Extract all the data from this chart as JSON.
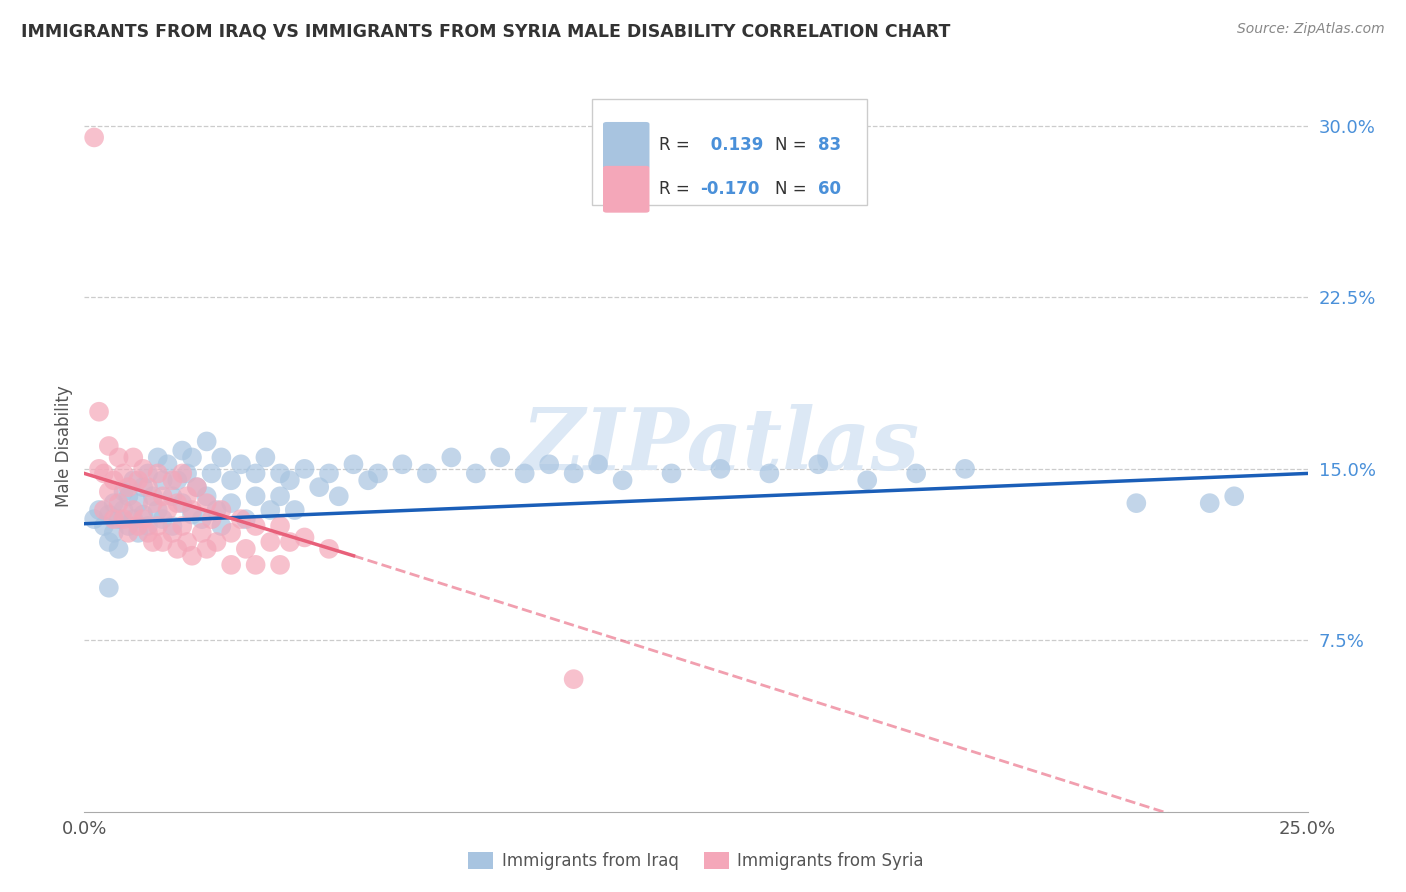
{
  "title": "IMMIGRANTS FROM IRAQ VS IMMIGRANTS FROM SYRIA MALE DISABILITY CORRELATION CHART",
  "source": "Source: ZipAtlas.com",
  "ylabel": "Male Disability",
  "xlim": [
    0.0,
    0.25
  ],
  "ylim": [
    0.0,
    0.32
  ],
  "yticks": [
    0.075,
    0.15,
    0.225,
    0.3
  ],
  "ytick_labels": [
    "7.5%",
    "15.0%",
    "22.5%",
    "30.0%"
  ],
  "xticks": [
    0.0,
    0.05,
    0.1,
    0.15,
    0.2,
    0.25
  ],
  "xtick_labels": [
    "0.0%",
    "",
    "",
    "",
    "",
    "25.0%"
  ],
  "iraq_R": 0.139,
  "iraq_N": 83,
  "syria_R": -0.17,
  "syria_N": 60,
  "iraq_color": "#a8c4e0",
  "syria_color": "#f4a7b9",
  "iraq_line_color": "#1a5eb8",
  "syria_line_color": "#e8607a",
  "background_color": "#ffffff",
  "watermark": "ZIPatlas",
  "watermark_color": "#dce8f5",
  "legend_color": "#4a90d9",
  "iraq_scatter": [
    [
      0.002,
      0.128
    ],
    [
      0.003,
      0.132
    ],
    [
      0.004,
      0.125
    ],
    [
      0.005,
      0.13
    ],
    [
      0.005,
      0.118
    ],
    [
      0.006,
      0.135
    ],
    [
      0.006,
      0.122
    ],
    [
      0.007,
      0.128
    ],
    [
      0.007,
      0.115
    ],
    [
      0.008,
      0.14
    ],
    [
      0.008,
      0.132
    ],
    [
      0.009,
      0.125
    ],
    [
      0.009,
      0.138
    ],
    [
      0.01,
      0.145
    ],
    [
      0.01,
      0.128
    ],
    [
      0.011,
      0.135
    ],
    [
      0.011,
      0.122
    ],
    [
      0.012,
      0.142
    ],
    [
      0.012,
      0.13
    ],
    [
      0.013,
      0.148
    ],
    [
      0.013,
      0.125
    ],
    [
      0.014,
      0.138
    ],
    [
      0.015,
      0.155
    ],
    [
      0.015,
      0.132
    ],
    [
      0.016,
      0.145
    ],
    [
      0.016,
      0.128
    ],
    [
      0.017,
      0.152
    ],
    [
      0.018,
      0.138
    ],
    [
      0.018,
      0.125
    ],
    [
      0.019,
      0.145
    ],
    [
      0.02,
      0.158
    ],
    [
      0.02,
      0.135
    ],
    [
      0.021,
      0.148
    ],
    [
      0.022,
      0.13
    ],
    [
      0.022,
      0.155
    ],
    [
      0.023,
      0.142
    ],
    [
      0.024,
      0.128
    ],
    [
      0.025,
      0.162
    ],
    [
      0.025,
      0.138
    ],
    [
      0.026,
      0.148
    ],
    [
      0.027,
      0.132
    ],
    [
      0.028,
      0.155
    ],
    [
      0.028,
      0.125
    ],
    [
      0.03,
      0.145
    ],
    [
      0.03,
      0.135
    ],
    [
      0.032,
      0.152
    ],
    [
      0.033,
      0.128
    ],
    [
      0.035,
      0.148
    ],
    [
      0.035,
      0.138
    ],
    [
      0.037,
      0.155
    ],
    [
      0.038,
      0.132
    ],
    [
      0.04,
      0.148
    ],
    [
      0.04,
      0.138
    ],
    [
      0.042,
      0.145
    ],
    [
      0.043,
      0.132
    ],
    [
      0.045,
      0.15
    ],
    [
      0.048,
      0.142
    ],
    [
      0.05,
      0.148
    ],
    [
      0.052,
      0.138
    ],
    [
      0.055,
      0.152
    ],
    [
      0.058,
      0.145
    ],
    [
      0.06,
      0.148
    ],
    [
      0.065,
      0.152
    ],
    [
      0.07,
      0.148
    ],
    [
      0.075,
      0.155
    ],
    [
      0.08,
      0.148
    ],
    [
      0.085,
      0.155
    ],
    [
      0.09,
      0.148
    ],
    [
      0.095,
      0.152
    ],
    [
      0.1,
      0.148
    ],
    [
      0.105,
      0.152
    ],
    [
      0.11,
      0.145
    ],
    [
      0.12,
      0.148
    ],
    [
      0.13,
      0.15
    ],
    [
      0.14,
      0.148
    ],
    [
      0.15,
      0.152
    ],
    [
      0.16,
      0.145
    ],
    [
      0.17,
      0.148
    ],
    [
      0.18,
      0.15
    ],
    [
      0.215,
      0.135
    ],
    [
      0.23,
      0.135
    ],
    [
      0.235,
      0.138
    ],
    [
      0.005,
      0.098
    ]
  ],
  "syria_scatter": [
    [
      0.002,
      0.295
    ],
    [
      0.003,
      0.175
    ],
    [
      0.003,
      0.15
    ],
    [
      0.004,
      0.148
    ],
    [
      0.004,
      0.132
    ],
    [
      0.005,
      0.16
    ],
    [
      0.005,
      0.14
    ],
    [
      0.006,
      0.145
    ],
    [
      0.006,
      0.128
    ],
    [
      0.007,
      0.155
    ],
    [
      0.007,
      0.135
    ],
    [
      0.008,
      0.148
    ],
    [
      0.008,
      0.128
    ],
    [
      0.009,
      0.142
    ],
    [
      0.009,
      0.122
    ],
    [
      0.01,
      0.155
    ],
    [
      0.01,
      0.132
    ],
    [
      0.011,
      0.145
    ],
    [
      0.011,
      0.125
    ],
    [
      0.012,
      0.15
    ],
    [
      0.012,
      0.128
    ],
    [
      0.013,
      0.142
    ],
    [
      0.013,
      0.122
    ],
    [
      0.014,
      0.135
    ],
    [
      0.014,
      0.118
    ],
    [
      0.015,
      0.148
    ],
    [
      0.015,
      0.125
    ],
    [
      0.016,
      0.138
    ],
    [
      0.016,
      0.118
    ],
    [
      0.017,
      0.132
    ],
    [
      0.018,
      0.145
    ],
    [
      0.018,
      0.122
    ],
    [
      0.019,
      0.135
    ],
    [
      0.019,
      0.115
    ],
    [
      0.02,
      0.148
    ],
    [
      0.02,
      0.125
    ],
    [
      0.021,
      0.138
    ],
    [
      0.021,
      0.118
    ],
    [
      0.022,
      0.132
    ],
    [
      0.022,
      0.112
    ],
    [
      0.023,
      0.142
    ],
    [
      0.024,
      0.122
    ],
    [
      0.025,
      0.135
    ],
    [
      0.025,
      0.115
    ],
    [
      0.026,
      0.128
    ],
    [
      0.027,
      0.118
    ],
    [
      0.028,
      0.132
    ],
    [
      0.03,
      0.122
    ],
    [
      0.03,
      0.108
    ],
    [
      0.032,
      0.128
    ],
    [
      0.033,
      0.115
    ],
    [
      0.035,
      0.125
    ],
    [
      0.035,
      0.108
    ],
    [
      0.038,
      0.118
    ],
    [
      0.04,
      0.125
    ],
    [
      0.04,
      0.108
    ],
    [
      0.042,
      0.118
    ],
    [
      0.045,
      0.12
    ],
    [
      0.05,
      0.115
    ],
    [
      0.1,
      0.058
    ]
  ]
}
